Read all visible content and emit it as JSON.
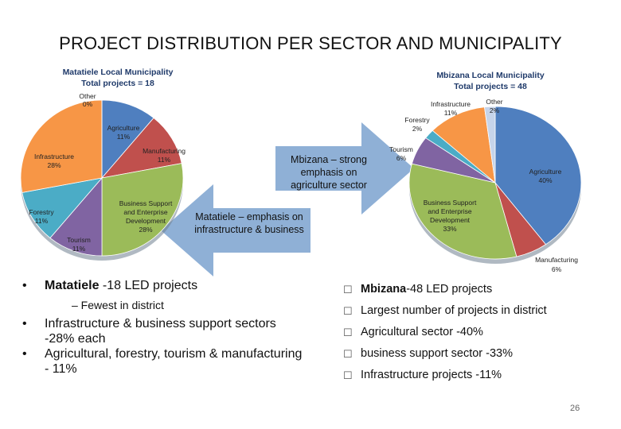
{
  "slide": {
    "title": "PROJECT DISTRIBUTION PER SECTOR AND MUNICIPALITY",
    "page_number": "26"
  },
  "arrows": {
    "right_arrow_text": "Mbizana – strong emphasis on agriculture sector",
    "left_arrow_text": "Matatiele – emphasis on infrastructure & business",
    "color": "#8fb0d6"
  },
  "chart_data": [
    {
      "type": "pie",
      "title": "Matatiele Local Municipality",
      "subtitle": "Total projects = 18",
      "slices": [
        {
          "label": "Agriculture",
          "value": 11,
          "pct_text": "11%",
          "color": "#4f7fbf"
        },
        {
          "label": "Manufacturing",
          "value": 11,
          "pct_text": "11%",
          "color": "#c0504d"
        },
        {
          "label": "Business Support and Enterprise Development",
          "value": 28,
          "pct_text": "28%",
          "color": "#9bbb59"
        },
        {
          "label": "Tourism",
          "value": 11,
          "pct_text": "11%",
          "color": "#8064a2"
        },
        {
          "label": "Forestry",
          "value": 11,
          "pct_text": "11%",
          "color": "#4bacc6"
        },
        {
          "label": "Infrastructure",
          "value": 28,
          "pct_text": "28%",
          "color": "#f79646"
        },
        {
          "label": "Other",
          "value": 0,
          "pct_text": "0%",
          "color": "#c6d4ea"
        }
      ]
    },
    {
      "type": "pie",
      "title": "Mbizana Local Municipality",
      "subtitle": "Total projects = 48",
      "slices": [
        {
          "label": "Agriculture",
          "value": 40,
          "pct_text": "40%",
          "color": "#4f7fbf"
        },
        {
          "label": "Manufacturing",
          "value": 6,
          "pct_text": "6%",
          "color": "#c0504d"
        },
        {
          "label": "Business Support and Enterprise Development",
          "value": 33,
          "pct_text": "33%",
          "color": "#9bbb59"
        },
        {
          "label": "Tourism",
          "value": 6,
          "pct_text": "6%",
          "color": "#8064a2"
        },
        {
          "label": "Forestry",
          "value": 2,
          "pct_text": "2%",
          "color": "#4bacc6"
        },
        {
          "label": "Infrastructure",
          "value": 11,
          "pct_text": "11%",
          "color": "#f79646"
        },
        {
          "label": "Other",
          "value": 2,
          "pct_text": "2%",
          "color": "#c6d4ea"
        }
      ]
    }
  ],
  "left_bullets": {
    "b1_bold": "Matatiele",
    "b1_rest": " -18 LED projects",
    "sub": "– Fewest in district",
    "b2": "Infrastructure & business support sectors -28% each",
    "b3": "Agricultural, forestry, tourism & manufacturing - 11%"
  },
  "right_bullets": {
    "r1_bold": "Mbizana",
    "r1_rest": "-48 LED projects",
    "r2": "Largest number of projects in district",
    "r3": "Agricultural  sector -40%",
    "r4": "business support sector -33%",
    "r5": "Infrastructure projects -11%"
  }
}
